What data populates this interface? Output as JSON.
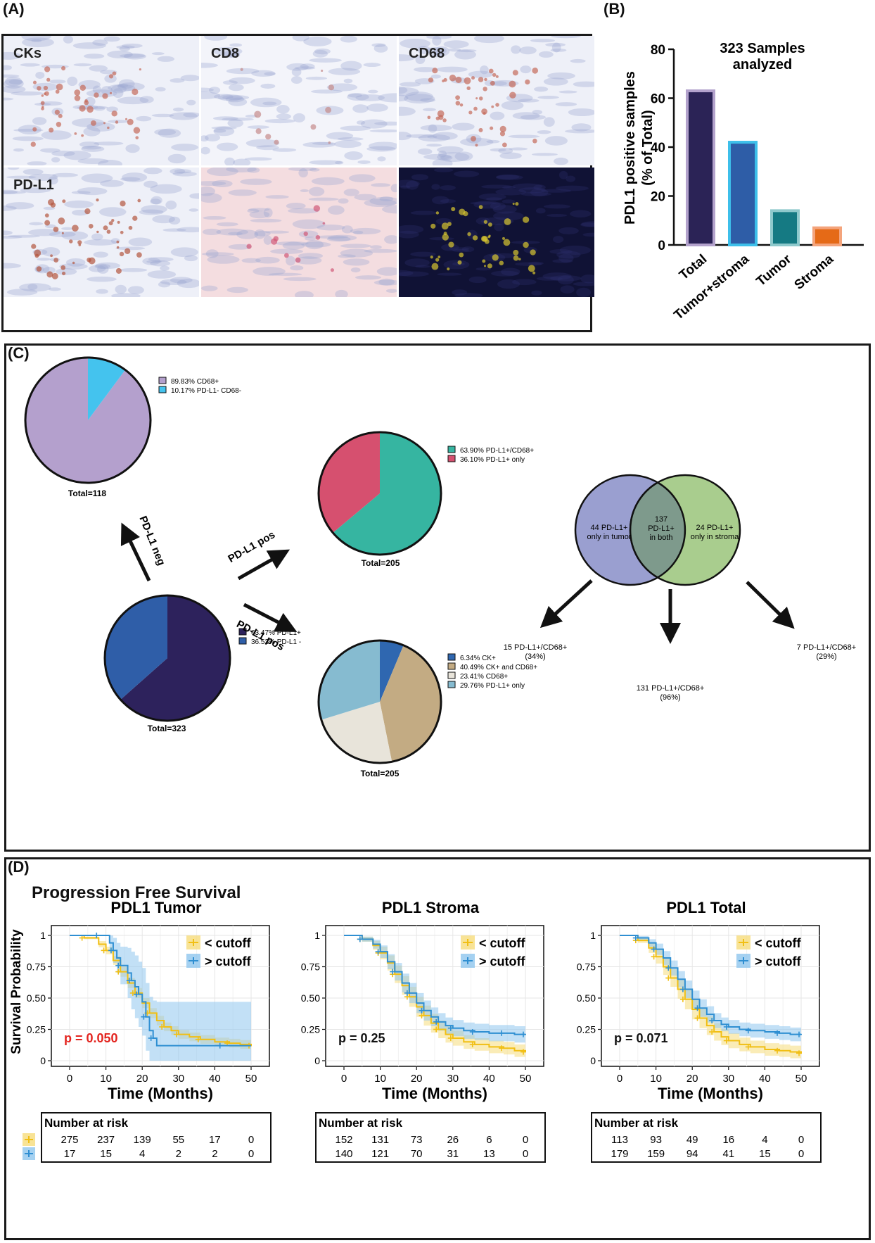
{
  "panels": {
    "a": "(A)",
    "b": "(B)",
    "c": "(C)",
    "d": "(D)"
  },
  "panel_a": {
    "tiles": [
      {
        "label": "CKs",
        "bg": "#eef0f8",
        "spot": "#c46a5a"
      },
      {
        "label": "CD8",
        "bg": "#f3f4fa",
        "spot": "#c48a8a"
      },
      {
        "label": "CD68",
        "bg": "#eef0f8",
        "spot": "#c46a5a"
      },
      {
        "label": "PD-L1",
        "bg": "#eef0f8",
        "spot": "#b4553f"
      },
      {
        "label": "",
        "bg": "#f4dde0",
        "spot": "#d05878"
      },
      {
        "label": "",
        "bg": "#101235",
        "spot": "#d8c630"
      }
    ]
  },
  "chart_data": [
    {
      "type": "bar",
      "title": "323 Samples analyzed",
      "ylabel": "PDL1 positive samples (% of Total)",
      "categories": [
        "Total",
        "Tumor+stroma",
        "Tumor",
        "Stroma"
      ],
      "values": [
        63,
        42,
        14,
        7
      ],
      "ylim": [
        0,
        80
      ],
      "yticks": [
        "0",
        "20",
        "40",
        "60",
        "80"
      ],
      "colors": [
        "#2b2356",
        "#2e5da7",
        "#157a83",
        "#e56a17"
      ],
      "edge_colors": [
        "#b3a2cc",
        "#3dbfea",
        "#8ec9cc",
        "#f4a47c"
      ]
    },
    {
      "type": "pie",
      "total_label": "Total=118",
      "slices": [
        {
          "label": "CD68+",
          "pct_text": "89.83%",
          "value": 89.83,
          "color": "#b4a0cd"
        },
        {
          "label": "PD-L1- CD68-",
          "pct_text": "10.17%",
          "value": 10.17,
          "color": "#44c3ee"
        }
      ]
    },
    {
      "type": "pie",
      "total_label": "Total=323",
      "slices": [
        {
          "label": "PD-L1+",
          "pct_text": "63.47%",
          "value": 63.47,
          "color": "#2d225c"
        },
        {
          "label": "PD-L1 -",
          "pct_text": "36.53%",
          "value": 36.53,
          "color": "#2f5ea8"
        }
      ]
    },
    {
      "type": "pie",
      "total_label": "Total=205",
      "slices": [
        {
          "label": "PD-L1+/CD68+",
          "pct_text": "63.90%",
          "value": 63.9,
          "color": "#36b5a1"
        },
        {
          "label": "PD-L1+ only",
          "pct_text": "36.10%",
          "value": 36.1,
          "color": "#d6506f"
        }
      ]
    },
    {
      "type": "pie",
      "total_label": "Total=205",
      "slices": [
        {
          "label": "CK+",
          "pct_text": "6.34%",
          "value": 6.34,
          "color": "#2f67b0"
        },
        {
          "label": "CK+ and CD68+",
          "pct_text": "40.49%",
          "value": 40.49,
          "color": "#c3ab83"
        },
        {
          "label": "CD68+",
          "pct_text": "23.41%",
          "value": 23.41,
          "color": "#e8e4da"
        },
        {
          "label": "PD-L1+ only",
          "pct_text": "29.76%",
          "value": 29.76,
          "color": "#86bbd0"
        }
      ]
    },
    {
      "type": "line",
      "title": "PDL1 Tumor",
      "xlabel": "Time (Months)",
      "ylabel": "Survival Probability",
      "xlim": [
        0,
        50
      ],
      "ylim": [
        0,
        1
      ],
      "xticks": [
        "0",
        "10",
        "20",
        "30",
        "40",
        "50"
      ],
      "yticks": [
        "0",
        "0.25",
        "0.50",
        "0.75",
        "1"
      ],
      "p_value": "p = 0.050",
      "p_color": "#e3241f",
      "series": [
        {
          "name": "< cutoff",
          "color": "#f1bf14",
          "band": "#f6dc7c",
          "x": [
            0,
            4,
            8,
            10,
            12,
            14,
            16,
            18,
            20,
            22,
            24,
            26,
            28,
            30,
            33,
            36,
            40,
            44,
            47,
            50
          ],
          "y": [
            1,
            0.98,
            0.93,
            0.88,
            0.8,
            0.71,
            0.62,
            0.54,
            0.46,
            0.38,
            0.32,
            0.27,
            0.24,
            0.21,
            0.19,
            0.17,
            0.15,
            0.14,
            0.13,
            0.12
          ],
          "band_width": [
            0,
            0.01,
            0.025,
            0.03,
            0.035,
            0.04,
            0.04,
            0.04,
            0.04,
            0.04,
            0.038,
            0.035,
            0.035,
            0.035,
            0.035,
            0.035,
            0.035,
            0.035,
            0.035,
            0.035
          ]
        },
        {
          "name": "> cutoff",
          "color": "#2f8fd2",
          "band": "#8fc6ee",
          "x": [
            0,
            8,
            11,
            12,
            13,
            14,
            16,
            17,
            18,
            19,
            20,
            21,
            22,
            23,
            24,
            42,
            50
          ],
          "y": [
            1,
            1,
            0.94,
            0.88,
            0.82,
            0.76,
            0.7,
            0.64,
            0.59,
            0.53,
            0.47,
            0.35,
            0.24,
            0.18,
            0.12,
            0.12,
            0.12
          ],
          "band_width": [
            0,
            0,
            0.06,
            0.1,
            0.12,
            0.15,
            0.2,
            0.23,
            0.25,
            0.26,
            0.27,
            0.27,
            0.27,
            0.3,
            0.35,
            0.35,
            0.35
          ]
        }
      ],
      "risk_table": {
        "title": "Number at risk",
        "rows": [
          [
            "275",
            "237",
            "139",
            "55",
            "17",
            "0"
          ],
          [
            "17",
            "15",
            "4",
            "2",
            "2",
            "0"
          ]
        ]
      }
    },
    {
      "type": "line",
      "title": "PDL1 Stroma",
      "xlabel": "Time (Months)",
      "xlim": [
        0,
        50
      ],
      "ylim": [
        0,
        1
      ],
      "xticks": [
        "0",
        "10",
        "20",
        "30",
        "40",
        "50"
      ],
      "yticks": [
        "0",
        "0.25",
        "0.50",
        "0.75",
        "1"
      ],
      "p_value": "p = 0.25",
      "p_color": "#111111",
      "series": [
        {
          "name": "< cutoff",
          "color": "#f1bf14",
          "band": "#f6dc7c",
          "x": [
            0,
            5,
            8,
            10,
            12,
            14,
            16,
            18,
            20,
            22,
            24,
            26,
            28,
            30,
            33,
            36,
            40,
            44,
            47,
            50
          ],
          "y": [
            1,
            0.97,
            0.92,
            0.86,
            0.78,
            0.69,
            0.6,
            0.51,
            0.43,
            0.36,
            0.3,
            0.25,
            0.21,
            0.18,
            0.15,
            0.13,
            0.11,
            0.1,
            0.08,
            0.07
          ],
          "band_width": [
            0,
            0.02,
            0.035,
            0.05,
            0.06,
            0.07,
            0.075,
            0.08,
            0.08,
            0.08,
            0.075,
            0.07,
            0.065,
            0.06,
            0.055,
            0.05,
            0.05,
            0.05,
            0.05,
            0.05
          ]
        },
        {
          "name": "> cutoff",
          "color": "#2f8fd2",
          "band": "#8fc6ee",
          "x": [
            0,
            5,
            8,
            10,
            12,
            14,
            16,
            18,
            20,
            22,
            24,
            26,
            28,
            30,
            33,
            36,
            40,
            44,
            47,
            50
          ],
          "y": [
            1,
            0.97,
            0.93,
            0.87,
            0.79,
            0.71,
            0.62,
            0.54,
            0.46,
            0.4,
            0.35,
            0.31,
            0.28,
            0.26,
            0.24,
            0.23,
            0.22,
            0.22,
            0.21,
            0.21
          ],
          "band_width": [
            0,
            0.02,
            0.035,
            0.05,
            0.06,
            0.07,
            0.075,
            0.08,
            0.08,
            0.08,
            0.075,
            0.07,
            0.065,
            0.065,
            0.065,
            0.065,
            0.065,
            0.065,
            0.065,
            0.065
          ]
        }
      ],
      "risk_table": {
        "title": "Number at risk",
        "rows": [
          [
            "152",
            "131",
            "73",
            "26",
            "6",
            "0"
          ],
          [
            "140",
            "121",
            "70",
            "31",
            "13",
            "0"
          ]
        ]
      }
    },
    {
      "type": "line",
      "title": "PDL1 Total",
      "xlabel": "Time (Months)",
      "xlim": [
        0,
        50
      ],
      "ylim": [
        0,
        1
      ],
      "xticks": [
        "0",
        "10",
        "20",
        "30",
        "40",
        "50"
      ],
      "yticks": [
        "0",
        "0.25",
        "0.50",
        "0.75",
        "1"
      ],
      "p_value": "p = 0.071",
      "p_color": "#111111",
      "series": [
        {
          "name": "< cutoff",
          "color": "#f1bf14",
          "band": "#f6dc7c",
          "x": [
            0,
            5,
            8,
            10,
            12,
            14,
            16,
            18,
            20,
            22,
            24,
            26,
            28,
            30,
            33,
            36,
            40,
            44,
            47,
            50
          ],
          "y": [
            1,
            0.96,
            0.9,
            0.83,
            0.75,
            0.66,
            0.57,
            0.49,
            0.41,
            0.34,
            0.28,
            0.23,
            0.19,
            0.16,
            0.13,
            0.11,
            0.09,
            0.08,
            0.07,
            0.06
          ],
          "band_width": [
            0,
            0.02,
            0.04,
            0.055,
            0.065,
            0.07,
            0.075,
            0.08,
            0.08,
            0.08,
            0.075,
            0.07,
            0.065,
            0.06,
            0.055,
            0.05,
            0.05,
            0.05,
            0.05,
            0.05
          ]
        },
        {
          "name": "> cutoff",
          "color": "#2f8fd2",
          "band": "#8fc6ee",
          "x": [
            0,
            5,
            8,
            10,
            12,
            14,
            16,
            18,
            20,
            22,
            24,
            26,
            28,
            30,
            33,
            36,
            40,
            44,
            47,
            50
          ],
          "y": [
            1,
            0.98,
            0.94,
            0.89,
            0.82,
            0.74,
            0.65,
            0.57,
            0.49,
            0.42,
            0.37,
            0.32,
            0.29,
            0.27,
            0.25,
            0.24,
            0.23,
            0.22,
            0.21,
            0.21
          ],
          "band_width": [
            0,
            0.015,
            0.03,
            0.045,
            0.055,
            0.06,
            0.065,
            0.07,
            0.07,
            0.07,
            0.065,
            0.06,
            0.055,
            0.055,
            0.055,
            0.055,
            0.055,
            0.055,
            0.055,
            0.055
          ]
        }
      ],
      "risk_table": {
        "title": "Number at risk",
        "rows": [
          [
            "113",
            "93",
            "49",
            "16",
            "4",
            "0"
          ],
          [
            "179",
            "159",
            "94",
            "41",
            "15",
            "0"
          ]
        ]
      }
    }
  ],
  "panel_c": {
    "arrows": {
      "neg": "PD-L1 neg",
      "pos_upper": "PD-L1 pos",
      "pos_lower": "PD-L1 pos"
    },
    "venn": {
      "left_text": [
        "44 PD-L1+",
        "only in tumor"
      ],
      "center_text": [
        "137",
        "PD-L1+",
        "in both"
      ],
      "right_text": [
        "24 PD-L1+",
        "only in stroma"
      ],
      "left_color": "#9a9fd0",
      "right_color": "#a9cd8e",
      "overlap_color": "#7e9a8c"
    },
    "outcomes": [
      {
        "lines": [
          "15 PD-L1+/CD68+",
          "(34%)"
        ]
      },
      {
        "lines": [
          "131 PD-L1+/CD68+",
          "(96%)"
        ]
      },
      {
        "lines": [
          "7 PD-L1+/CD68+",
          "(29%)"
        ]
      }
    ]
  },
  "panel_d": {
    "heading": "Progression Free Survival"
  }
}
